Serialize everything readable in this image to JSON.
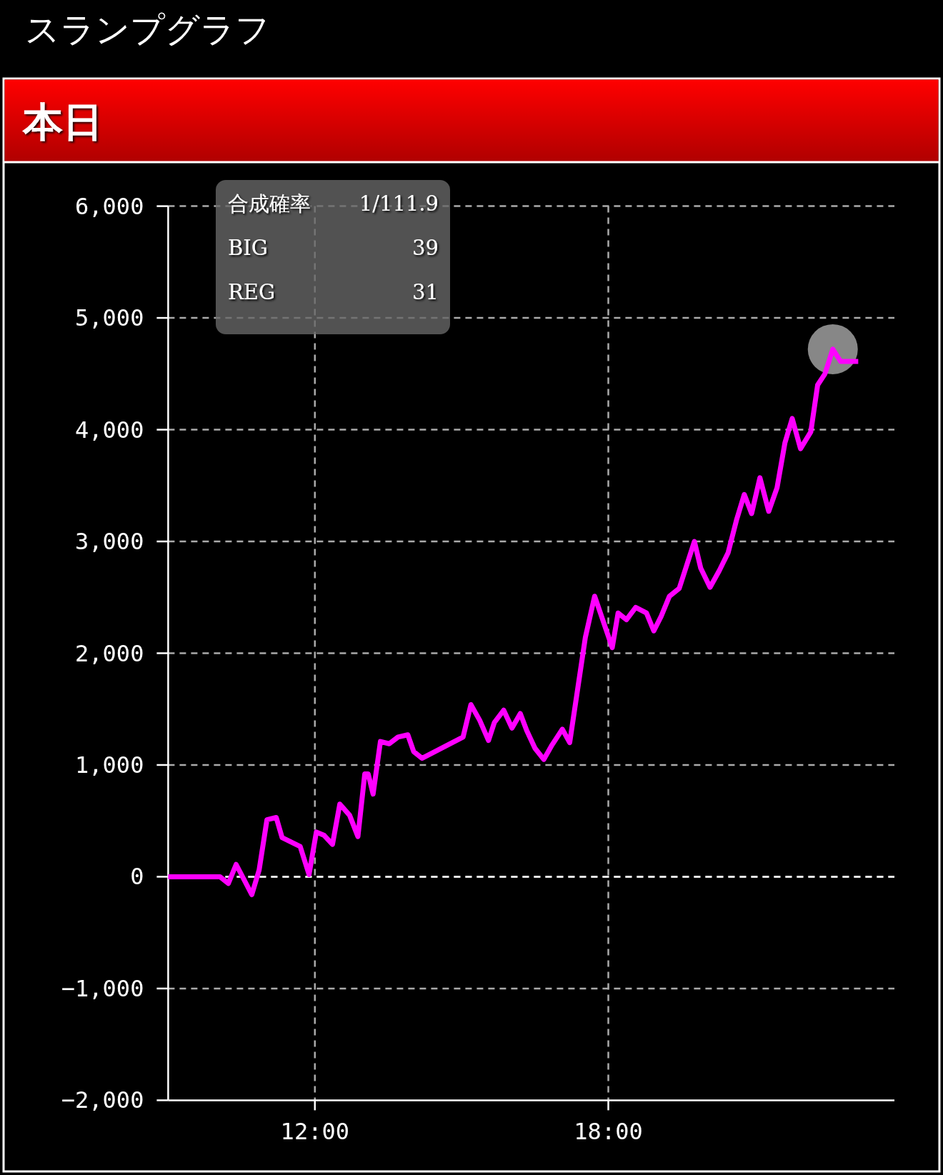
{
  "chart_data": {
    "type": "line",
    "title": "スランプグラフ",
    "subtitle": "本日",
    "annotations": [
      "合成確率",
      "1/111.9",
      "BIG",
      "39",
      "REG",
      "31"
    ],
    "xlim": [
      9,
      23.85
    ],
    "xticks": [
      {
        "value": 12,
        "label": "12:00"
      },
      {
        "value": 18,
        "label": "18:00"
      }
    ],
    "ylim": [
      -2000,
      6000
    ],
    "yticks": [
      {
        "value": -2000,
        "label": "−2,000"
      },
      {
        "value": -1000,
        "label": "−1,000"
      },
      0,
      {
        "value": 1000,
        "label": "1,000"
      },
      {
        "value": 2000,
        "label": "2,000"
      },
      {
        "value": 3000,
        "label": "3,000"
      },
      {
        "value": 4000,
        "label": "4,000"
      },
      {
        "value": 5000,
        "label": "5,000"
      },
      {
        "value": 6000,
        "label": "6,000"
      }
    ],
    "grid": true,
    "line_style": "solid",
    "ref_lines": [
      {
        "axis": "y",
        "value": 0,
        "color": "#ffffff",
        "line_style": "dashed"
      }
    ],
    "series": [
      {
        "color": "#ff00ff",
        "x": [
          9.0,
          10.06,
          10.23,
          10.39,
          10.71,
          10.86,
          11.02,
          11.21,
          11.33,
          11.7,
          11.88,
          12.03,
          12.19,
          12.36,
          12.51,
          12.71,
          12.88,
          13.02,
          13.09,
          13.19,
          13.34,
          13.52,
          13.7,
          13.9,
          14.02,
          14.19,
          15.03,
          15.19,
          15.37,
          15.55,
          15.67,
          15.86,
          16.03,
          16.2,
          16.33,
          16.5,
          16.68,
          16.85,
          17.06,
          17.21,
          17.38,
          17.53,
          17.72,
          18.08,
          18.2,
          18.37,
          18.56,
          18.78,
          18.93,
          19.08,
          19.25,
          19.45,
          19.76,
          19.89,
          20.08,
          20.27,
          20.45,
          20.62,
          20.78,
          20.93,
          21.1,
          21.28,
          21.45,
          21.61,
          21.76,
          21.93,
          22.14,
          22.28,
          22.43,
          22.59,
          22.75,
          23.11
        ],
        "values": [
          0,
          0,
          -60,
          110,
          -160,
          60,
          510,
          530,
          350,
          270,
          20,
          400,
          370,
          290,
          650,
          550,
          360,
          920,
          920,
          740,
          1210,
          1190,
          1250,
          1270,
          1120,
          1060,
          1250,
          1540,
          1400,
          1220,
          1380,
          1490,
          1330,
          1460,
          1310,
          1150,
          1050,
          1180,
          1320,
          1200,
          1700,
          2140,
          2510,
          2050,
          2360,
          2300,
          2410,
          2360,
          2200,
          2330,
          2510,
          2580,
          3000,
          2760,
          2590,
          2740,
          2900,
          3190,
          3420,
          3250,
          3570,
          3270,
          3480,
          3880,
          4100,
          3830,
          3980,
          4400,
          4500,
          4720,
          4610,
          4610
        ]
      },
      {
        "type": "scatter",
        "color": "#c0c0c0",
        "x": [
          22.59
        ],
        "values": [
          4720
        ]
      }
    ]
  }
}
